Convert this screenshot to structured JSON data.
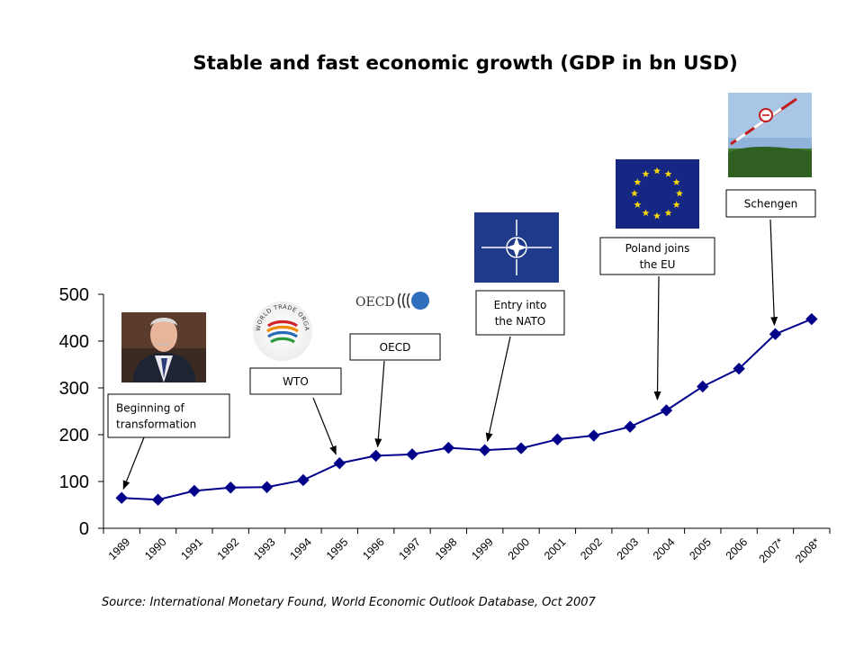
{
  "title": "Stable and fast economic growth (GDP in bn USD)",
  "source": "Source: International Monetary Found, World Economic Outlook Database, Oct 2007",
  "colors": {
    "series": "#00008B",
    "axis": "#000000"
  },
  "chart_data": {
    "type": "line",
    "title": "Stable and fast economic growth (GDP in bn USD)",
    "xlabel": "",
    "ylabel": "",
    "ylim": [
      0,
      500
    ],
    "yticks": [
      0,
      100,
      200,
      300,
      400,
      500
    ],
    "categories": [
      "1989",
      "1990",
      "1991",
      "1992",
      "1993",
      "1994",
      "1995",
      "1996",
      "1997",
      "1998",
      "1999",
      "2000",
      "2001",
      "2002",
      "2003",
      "2004",
      "2005",
      "2006",
      "2007*",
      "2008*"
    ],
    "series": [
      {
        "values": [
          65,
          61,
          80,
          87,
          88,
          103,
          139,
          155,
          158,
          172,
          167,
          171,
          190,
          198,
          217,
          252,
          303,
          341,
          415,
          447
        ]
      }
    ],
    "grid": false,
    "legend": "none",
    "annotations": [
      {
        "label_lines": [
          "Beginning of",
          "transformation"
        ],
        "target_category": "1989",
        "image": "lech-walesa-portrait"
      },
      {
        "label_lines": [
          "WTO"
        ],
        "target_category": "1995",
        "image": "wto-logo"
      },
      {
        "label_lines": [
          "OECD"
        ],
        "target_category": "1996",
        "image": "oecd-logo"
      },
      {
        "label_lines": [
          "Entry into",
          "the NATO"
        ],
        "target_category": "1999",
        "image": "nato-flag"
      },
      {
        "label_lines": [
          "Poland joins",
          "the EU"
        ],
        "target_category": "2004",
        "image": "eu-flag"
      },
      {
        "label_lines": [
          "Schengen"
        ],
        "target_category": "2007*",
        "image": "schengen-border-barrier"
      }
    ]
  },
  "logos": {
    "oecd_text": "OECD",
    "wto_ring_text": "WORLD TRADE ORGANIZATION"
  }
}
